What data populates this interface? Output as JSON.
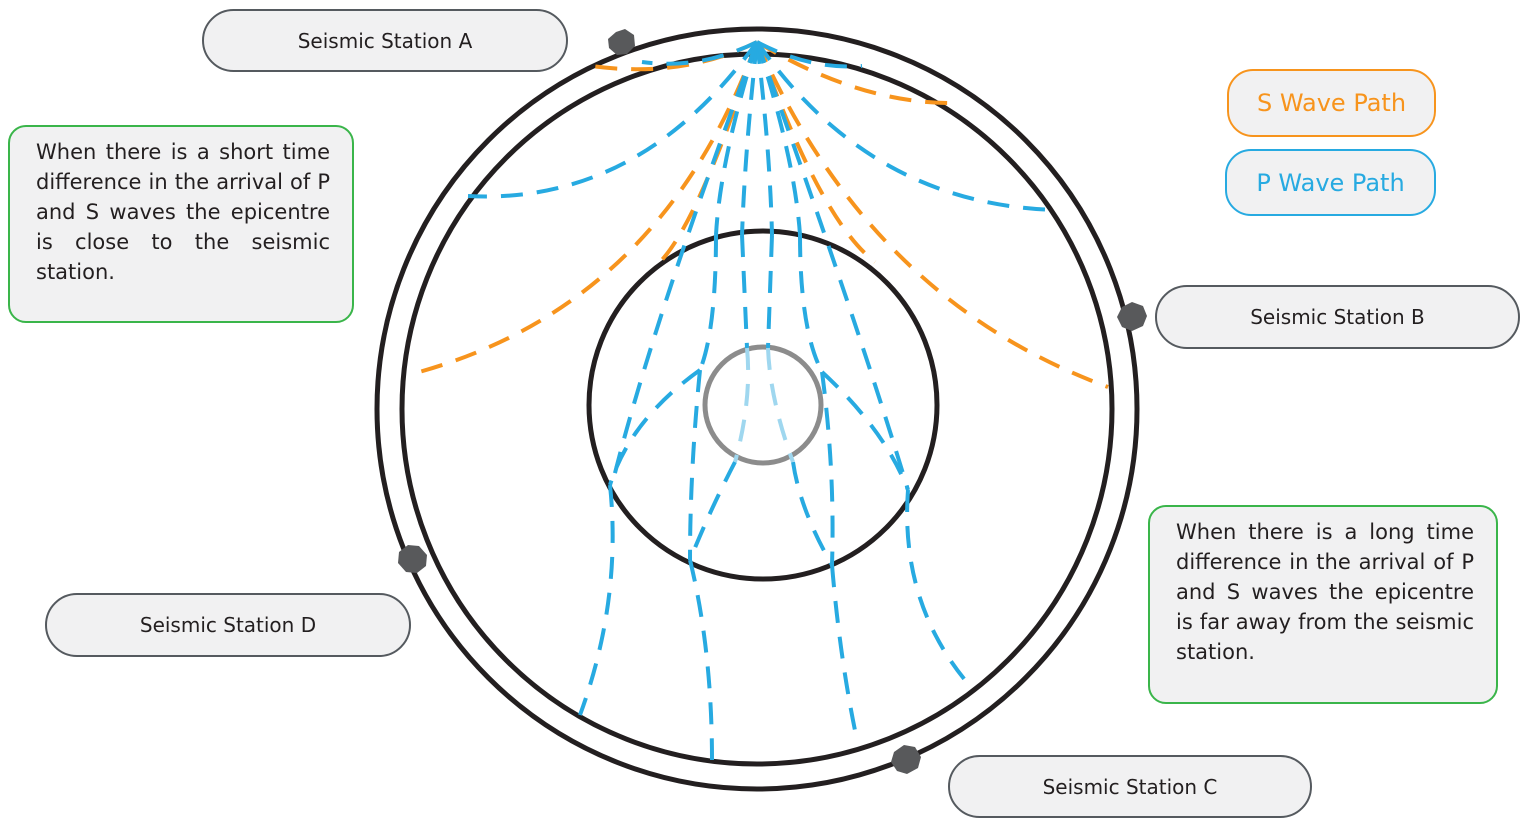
{
  "stations": {
    "a": "Seismic Station A",
    "b": "Seismic Station B",
    "c": "Seismic Station C",
    "d": "Seismic Station D"
  },
  "legend": {
    "s_wave": "S Wave Path",
    "p_wave": "P Wave Path"
  },
  "notes": {
    "short_difference": "When there is a short time difference in the arrival of P and S waves the epicentre is close to the seismic station.",
    "long_difference": "When there is a long time difference in the arrival of P and S waves the epicentre is far away from the seismic station."
  },
  "colors": {
    "s_wave": "#f7941d",
    "p_wave": "#27aae1",
    "note_border": "#3ab54a",
    "earth_outline": "#231f20",
    "inner_core": "#8c8c8c",
    "station_marker": "#58595b"
  }
}
